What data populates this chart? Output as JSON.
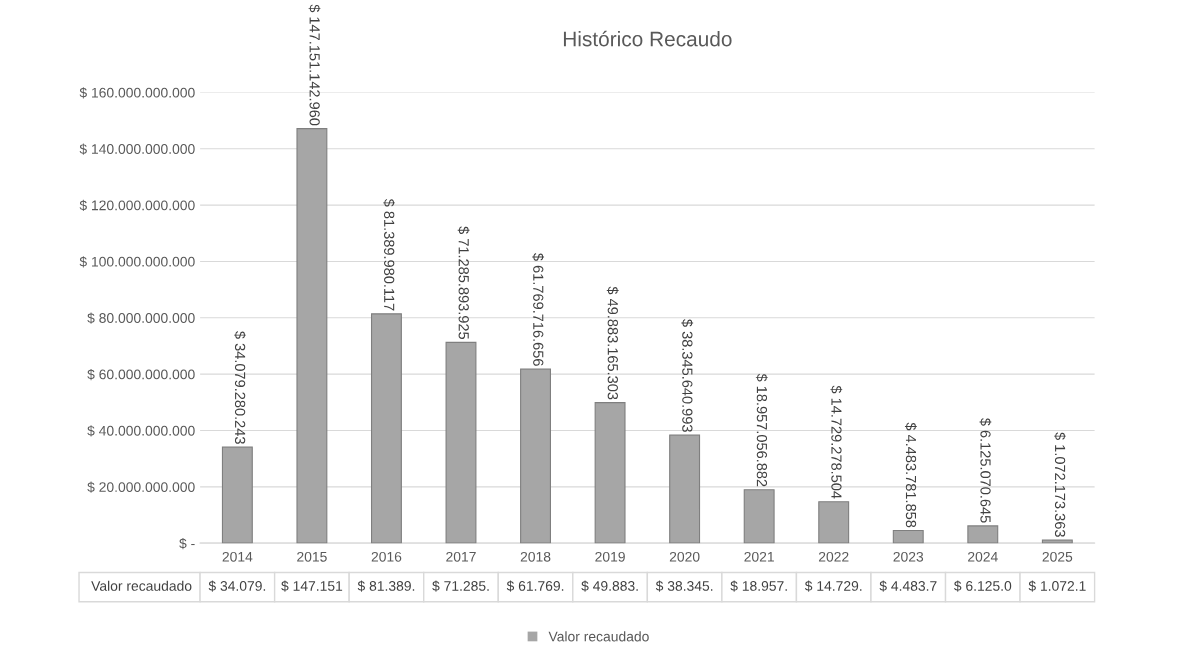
{
  "chart_data": {
    "type": "bar",
    "title": "Histórico Recaudo",
    "categories": [
      "2014",
      "2015",
      "2016",
      "2017",
      "2018",
      "2019",
      "2020",
      "2021",
      "2022",
      "2023",
      "2024",
      "2025"
    ],
    "series": [
      {
        "name": "Valor recaudado",
        "color": "#a6a6a6",
        "values": [
          34079280243,
          147151142960,
          81389980117,
          71285893925,
          61769716656,
          49883165303,
          38345640993,
          18957056882,
          14729278504,
          4483781858,
          6125070645,
          1072173363
        ],
        "value_labels": [
          "$ 34.079.280.243",
          "$ 147.151.142.960",
          "$ 81.389.980.117",
          "$ 71.285.893.925",
          "$ 61.769.716.656",
          "$ 49.883.165.303",
          "$ 38.345.640.993",
          "$ 18.957.056.882",
          "$ 14.729.278.504",
          "$ 4.483.781.858",
          "$ 6.125.070.645",
          "$ 1.072.173.363"
        ]
      }
    ],
    "annotations": [
      "$ 34.079.",
      "$ 147.151",
      "$ 81.389.",
      "$ 71.285.",
      "$ 61.769.",
      "$ 49.883.",
      "$ 38.345.",
      "$ 18.957.",
      "$ 14.729.",
      "$ 4.483.7",
      "$ 6.125.0",
      "$ 1.072.1"
    ],
    "ylim": [
      0,
      160000000000
    ],
    "yticks": [
      {
        "value": 0,
        "label": "$ -"
      },
      {
        "value": 20000000000,
        "label": "$ 20.000.000.000"
      },
      {
        "value": 40000000000,
        "label": "$ 40.000.000.000"
      },
      {
        "value": 60000000000,
        "label": "$ 60.000.000.000"
      },
      {
        "value": 80000000000,
        "label": "$ 80.000.000.000"
      },
      {
        "value": 100000000000,
        "label": "$ 100.000.000.000"
      },
      {
        "value": 120000000000,
        "label": "$ 120.000.000.000"
      },
      {
        "value": 140000000000,
        "label": "$ 140.000.000.000"
      },
      {
        "value": 160000000000,
        "label": "$ 160.000.000.000"
      }
    ],
    "grid": "y",
    "legend": "bottom"
  }
}
